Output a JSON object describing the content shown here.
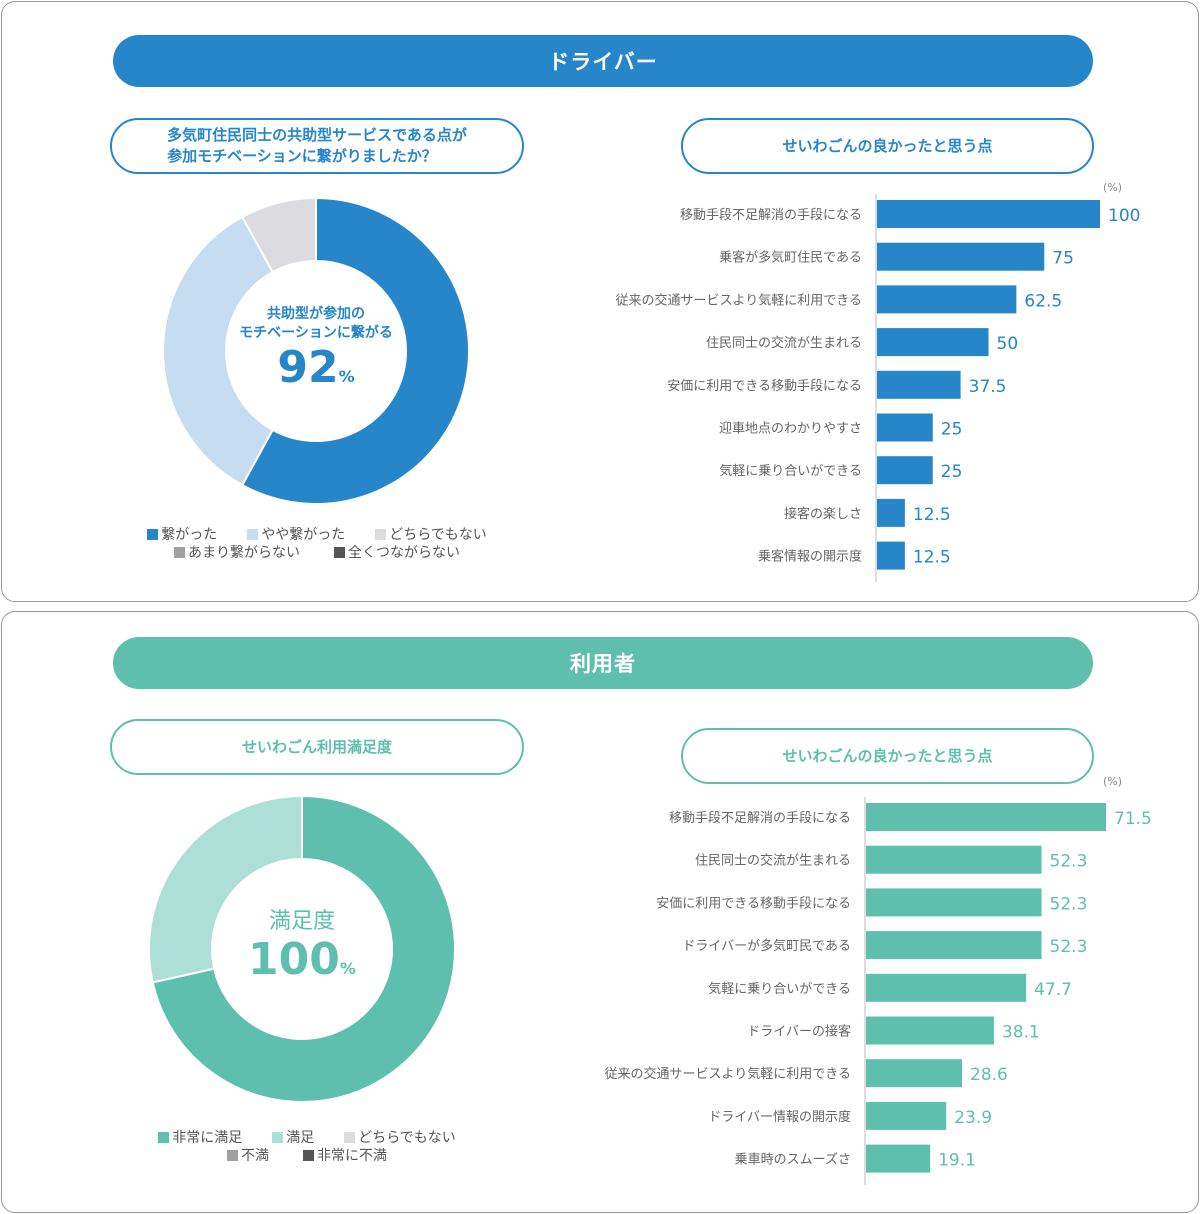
{
  "driver": {
    "banner": "ドライバー",
    "question": [
      "多気町住民同士の共助型サービスである点が",
      "参加モチベーションに繋がりましたか？"
    ],
    "center_label": [
      "共助型が参加の",
      "モチベーションに繋がる"
    ],
    "center_value": "92",
    "center_unit": "%",
    "bar_title": "せいわごんの良かったと思う点",
    "bar_unit": "(%)",
    "legend_row1": [
      "繋がった",
      "やや繋がった",
      "どちらでもない"
    ],
    "legend_row2": [
      "あまり繋がらない",
      "全くつながらない"
    ]
  },
  "user": {
    "banner": "利用者",
    "question": "せいわごん利用満足度",
    "center_label": "満足度",
    "center_value": "100",
    "center_unit": "%",
    "bar_title": "せいわごんの良かったと思う点",
    "bar_unit": "(%)",
    "legend_row1": [
      "非常に満足",
      "満足",
      "どちらでもない"
    ],
    "legend_row2": [
      "不満",
      "非常に不満"
    ]
  },
  "colors": {
    "driver_main": "#2686c9",
    "driver_light": "#c6dcf1",
    "neutral": "#dcdce0",
    "slightly_negative": "#a0a0a4",
    "negative": "#555558",
    "user_main": "#5ebfad",
    "user_light": "#addfd7"
  },
  "chart_data": [
    {
      "type": "pie",
      "title": "多気町住民同士の共助型サービスである点が参加モチベーションに繋がりましたか？",
      "categories": [
        "繋がった",
        "やや繋がった",
        "どちらでもない",
        "あまり繋がらない",
        "全くつながらない"
      ],
      "values": [
        58,
        34,
        8,
        0,
        0
      ],
      "legend": "bottom"
    },
    {
      "type": "bar",
      "title": "せいわごんの良かったと思う点",
      "orientation": "horizontal",
      "unit": "(%)",
      "categories": [
        "移動手段不足解消の手段になる",
        "乗客が多気町住民である",
        "従来の交通サービスより気軽に利用できる",
        "住民同士の交流が生まれる",
        "安価に利用できる移動手段になる",
        "迎車地点のわかりやすさ",
        "気軽に乗り合いができる",
        "接客の楽しさ",
        "乗客情報の開示度"
      ],
      "values": [
        100,
        75,
        62.5,
        50,
        37.5,
        25,
        25,
        12.5,
        12.5
      ],
      "xlim": [
        0,
        100
      ]
    },
    {
      "type": "pie",
      "title": "せいわごん利用満足度",
      "categories": [
        "非常に満足",
        "満足",
        "どちらでもない",
        "不満",
        "非常に不満"
      ],
      "values": [
        71.5,
        28.5,
        0,
        0,
        0
      ],
      "legend": "bottom"
    },
    {
      "type": "bar",
      "title": "せいわごんの良かったと思う点",
      "orientation": "horizontal",
      "unit": "(%)",
      "categories": [
        "移動手段不足解消の手段になる",
        "住民同士の交流が生まれる",
        "安価に利用できる移動手段になる",
        "ドライバーが多気町民である",
        "気軽に乗り合いができる",
        "ドライバーの接客",
        "従来の交通サービスより気軽に利用できる",
        "ドライバー情報の開示度",
        "乗車時のスムーズさ"
      ],
      "values": [
        71.5,
        52.3,
        52.3,
        52.3,
        47.7,
        38.1,
        28.6,
        23.9,
        19.1
      ],
      "xlim": [
        0,
        71.5
      ]
    }
  ]
}
